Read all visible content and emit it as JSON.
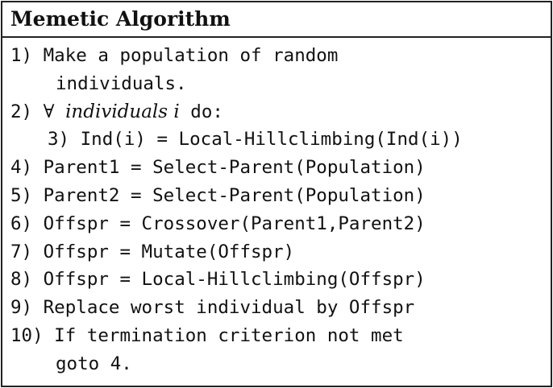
{
  "title": "Memetic Algorithm",
  "lines": [
    {
      "text": "1) Make a population of random"
    },
    {
      "text": "individuals."
    },
    {
      "prefix": "2) ",
      "forall": "∀",
      "iterator": "individuals i",
      "suffix": " do:"
    },
    {
      "text": "3) Ind(i) = Local-Hillclimbing(Ind(i))"
    },
    {
      "text": "4) Parent1 = Select-Parent(Population)"
    },
    {
      "text": "5) Parent2 = Select-Parent(Population)"
    },
    {
      "text": "6) Offspr = Crossover(Parent1,Parent2)"
    },
    {
      "text": "7) Offspr = Mutate(Offspr)"
    },
    {
      "text": "8) Offspr = Local-Hillclimbing(Offspr)"
    },
    {
      "text": "9) Replace worst individual by Offspr"
    },
    {
      "text": "10) If termination criterion not met"
    },
    {
      "text": "goto 4."
    }
  ]
}
